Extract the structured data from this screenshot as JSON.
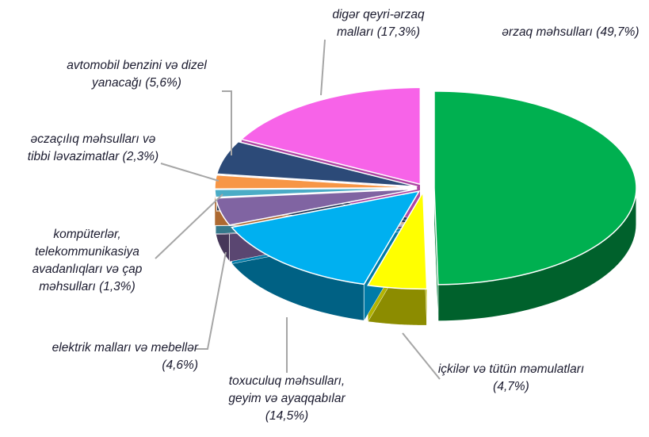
{
  "chart_data": {
    "type": "pie3d",
    "categories": [
      "ərzaq məhsulları",
      "içkilər və tütün məmulatları",
      "toxuculuq məhsulları, geyim və ayaqqabılar",
      "elektrik malları və mebellər",
      "kompüterlər, telekommunikasiya avadanlıqları və çap məhsulları",
      "əczaçılıq məhsulları və tibbi ləvazimatlar",
      "avtomobil benzini və dizel yanacağı",
      "digər qeyri-ərzaq malları"
    ],
    "values": [
      49.7,
      4.7,
      14.5,
      4.6,
      1.3,
      2.3,
      5.6,
      17.3
    ],
    "value_labels": [
      "(49,7%)",
      "(4,7%)",
      "(14,5%)",
      "(4,6%)",
      "(1,3%)",
      "(2,3%)",
      "(5,6%)",
      "(17,3%)"
    ],
    "colors": [
      "#00b050",
      "#ffff00",
      "#00b0f0",
      "#8064a2",
      "#4bacc6",
      "#f79646",
      "#2c4a78",
      "#f763e8"
    ]
  }
}
